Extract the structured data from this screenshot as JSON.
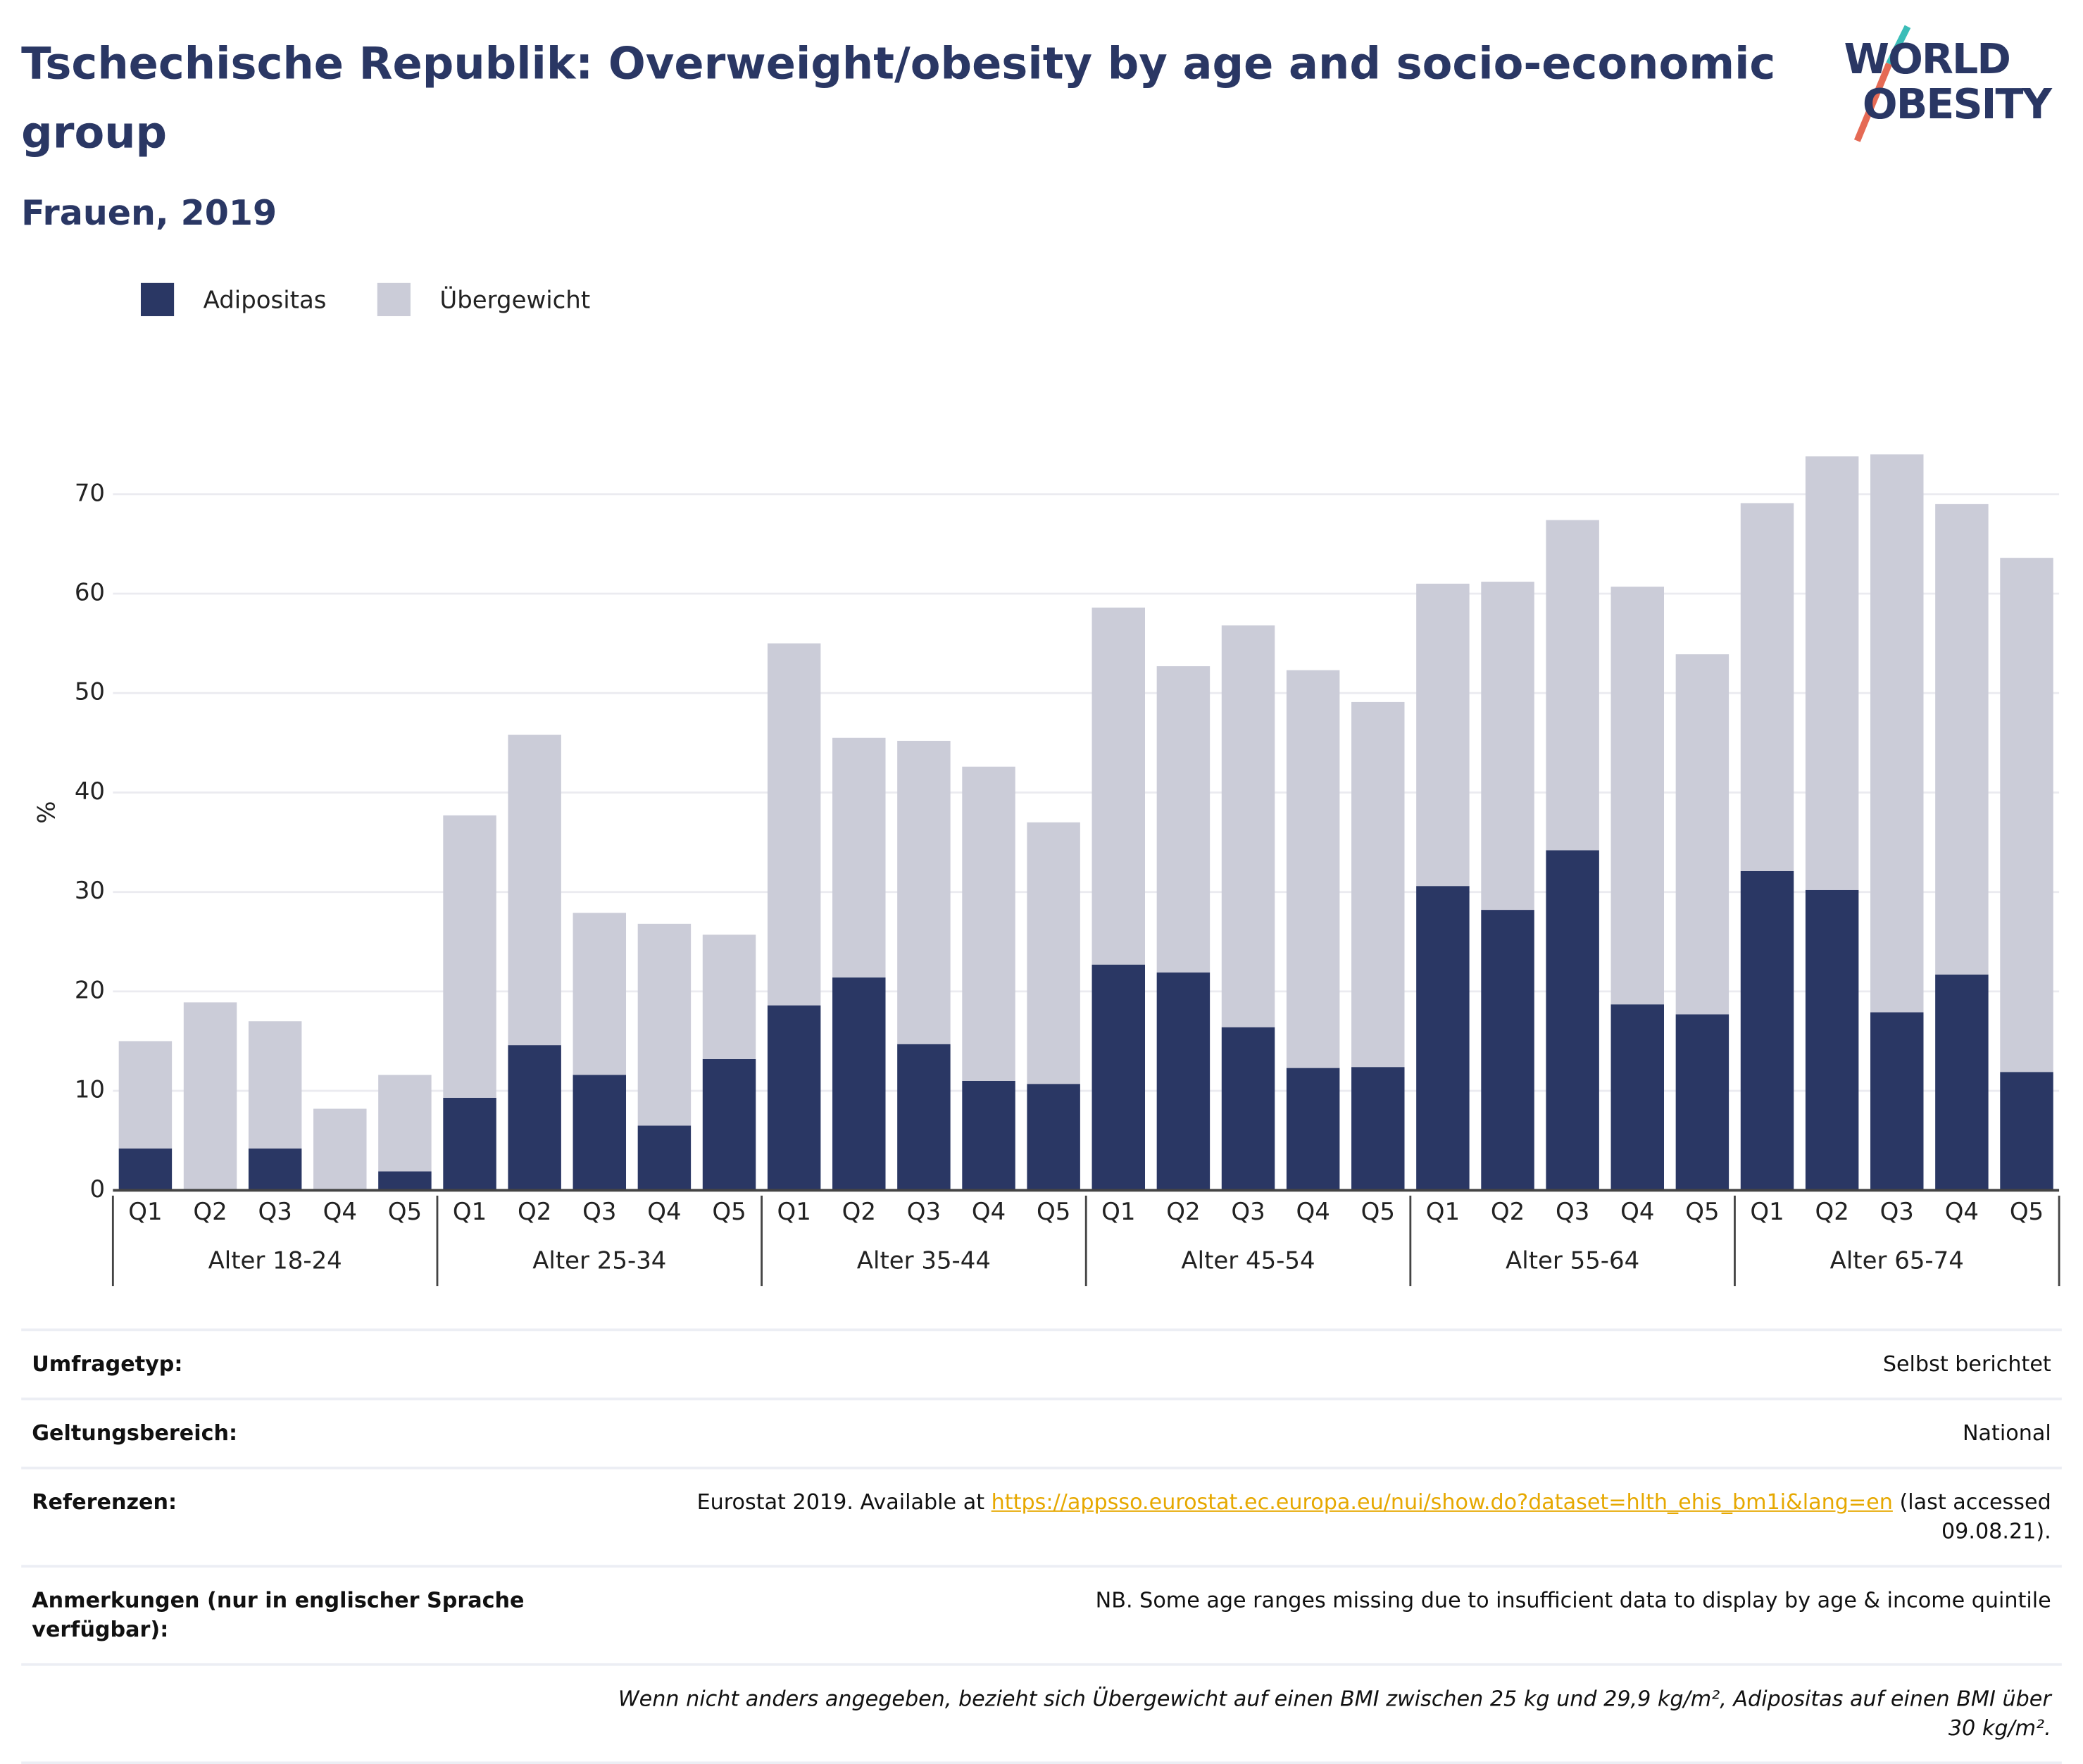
{
  "chart_data": {
    "type": "bar",
    "stacked": true,
    "title": "Tschechische Republik: Overweight/obesity by age and socio-economic group",
    "subtitle": "Frauen, 2019",
    "y_label": "%",
    "groups": [
      "Alter 18-24",
      "Alter 25-34",
      "Alter 35-44",
      "Alter 45-54",
      "Alter 55-64",
      "Alter 65-74"
    ],
    "categories": [
      "Q1",
      "Q2",
      "Q3",
      "Q4",
      "Q5",
      "Q1",
      "Q2",
      "Q3",
      "Q4",
      "Q5",
      "Q1",
      "Q2",
      "Q3",
      "Q4",
      "Q5",
      "Q1",
      "Q2",
      "Q3",
      "Q4",
      "Q5",
      "Q1",
      "Q2",
      "Q3",
      "Q4",
      "Q5",
      "Q1",
      "Q2",
      "Q3",
      "Q4",
      "Q5"
    ],
    "series": [
      {
        "name": "Adipositas",
        "color": "#2a3764",
        "values": [
          4.2,
          0,
          4.2,
          0,
          1.9,
          9.3,
          14.6,
          11.6,
          6.5,
          13.2,
          18.6,
          21.4,
          14.7,
          11,
          10.7,
          22.7,
          21.9,
          16.4,
          12.3,
          12.4,
          30.6,
          28.2,
          34.2,
          18.7,
          17.7,
          32.1,
          30.2,
          17.9,
          21.7,
          11.9
        ]
      },
      {
        "name": "Übergewicht",
        "color": "#cbccd8",
        "values": [
          10.8,
          18.9,
          12.8,
          8.2,
          9.7,
          28.4,
          31.2,
          16.3,
          20.3,
          12.5,
          36.4,
          24.1,
          30.5,
          31.6,
          26.3,
          35.9,
          30.8,
          40.4,
          40.0,
          36.7,
          30.4,
          33.0,
          33.2,
          42.0,
          36.2,
          37.0,
          43.6,
          56.1,
          47.3,
          51.7
        ]
      }
    ],
    "ylim": [
      0,
      76
    ],
    "yticks": [
      0,
      10,
      20,
      30,
      40,
      50,
      60,
      70
    ],
    "grid": true,
    "legend": "top-left"
  },
  "logo": [
    "WORLD",
    "OBESITY"
  ],
  "info": [
    {
      "label": "Umfragetyp:",
      "value": "Selbst berichtet"
    },
    {
      "label": "Geltungsbereich:",
      "value": "National"
    },
    {
      "label": "Anmerkungen (nur in englischer Sprache verfügbar):",
      "value": "NB. Some age ranges missing due to insufficient data to display by age & income quintile"
    }
  ],
  "references": {
    "label": "Referenzen:",
    "before": "Eurostat 2019. Available at",
    "link": "https://appsso.eurostat.ec.europa.eu/nui/show.do?dataset=hlth_ehis_bm1i&lang=en",
    "after": "(last accessed 09.08.21)."
  },
  "note": "Wenn nicht anders angegeben, bezieht sich Übergewicht auf einen BMI zwischen 25 kg und 29,9 kg/m², Adipositas auf einen BMI über 30 kg/m²."
}
